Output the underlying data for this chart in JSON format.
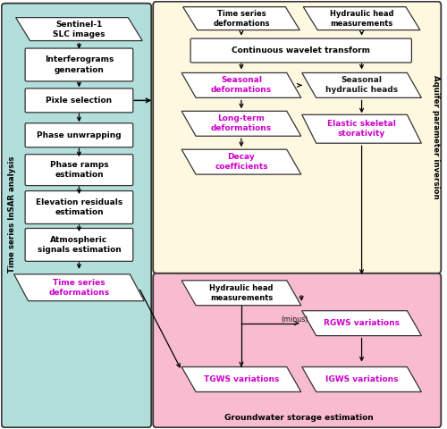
{
  "fig_width": 5.0,
  "fig_height": 4.8,
  "dpi": 100,
  "bg_color": "#ffffff",
  "insar_bg": "#b2dfdb",
  "aquifer_bg": "#fff8e1",
  "gw_bg": "#f8bbd0",
  "purple": "#cc00cc",
  "black": "#1a1a1a",
  "edge": "#333333",
  "insar_label": "Time series InSAR analysis",
  "aquifer_label": "Aquifer parameter inversion",
  "gw_label": "Groundwater storage estimation"
}
